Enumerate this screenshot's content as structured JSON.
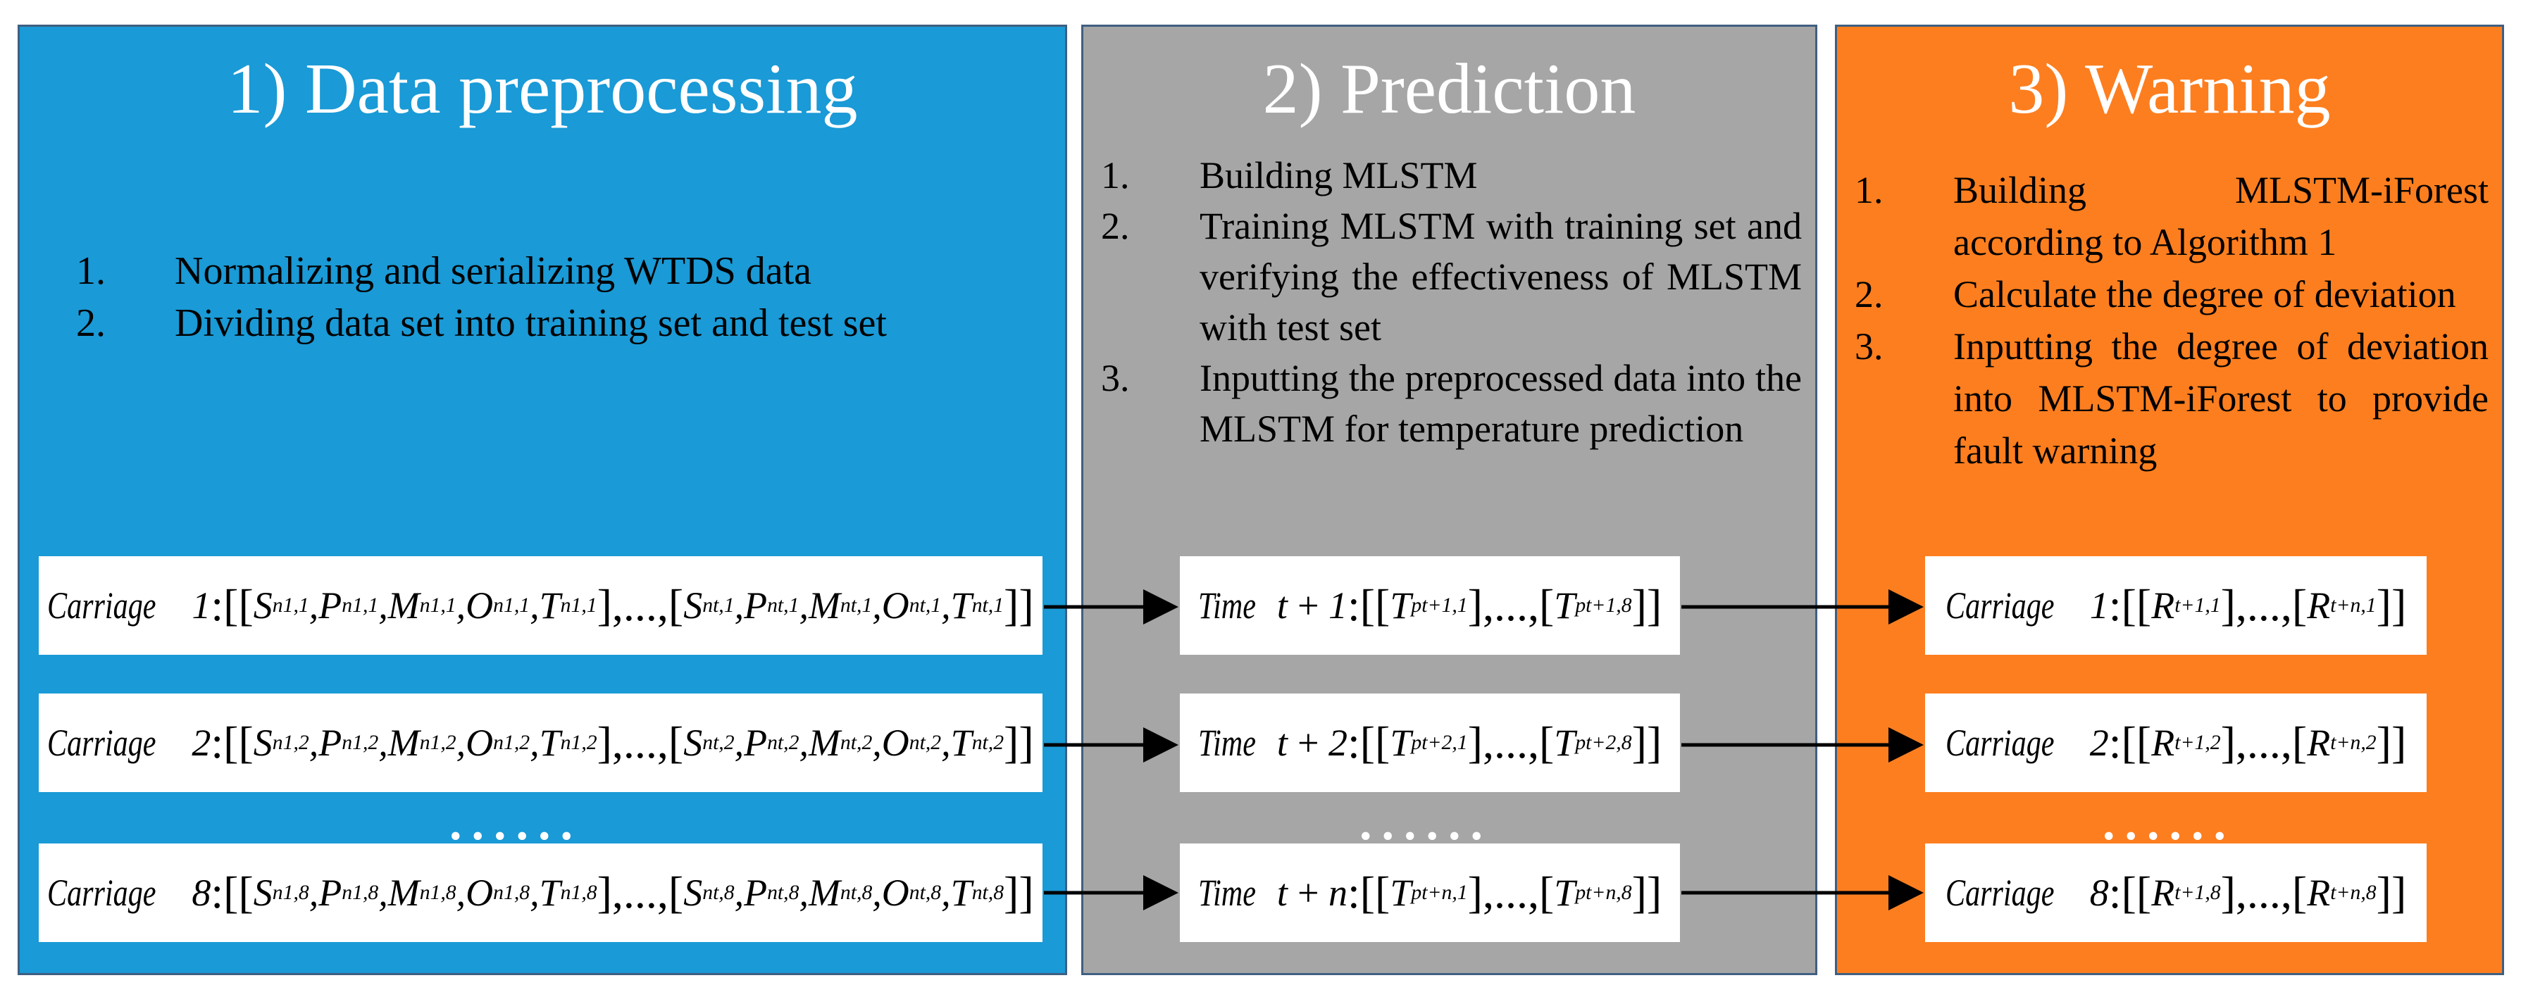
{
  "panels": [
    {
      "title": "1) Data preprocessing",
      "color": "#1a9ad6",
      "steps": [
        {
          "num": "1.",
          "text": "Normalizing and serializing WTDS data"
        },
        {
          "num": "2.",
          "text": "Dividing data set into training set and test set"
        }
      ]
    },
    {
      "title": "2) Prediction",
      "color": "#a6a6a6",
      "steps": [
        {
          "num": "1.",
          "text": "Building MLSTM"
        },
        {
          "num": "2.",
          "text": "Training MLSTM with training set and verifying the effectiveness of MLSTM with test set"
        },
        {
          "num": "3.",
          "text": "Inputting the preprocessed data into the MLSTM for temperature prediction"
        }
      ]
    },
    {
      "title": "3) Warning",
      "color": "#fd7e1f",
      "steps": [
        {
          "num": "1.",
          "text": "Building MLSTM-iForest according to Algorithm 1"
        },
        {
          "num": "2.",
          "text": "Calculate the degree of deviation"
        },
        {
          "num": "3.",
          "text": "Inputting the degree of deviation into MLSTM-iForest to provide fault warning"
        }
      ]
    }
  ],
  "carriage_word": "Carriage",
  "time_word": "Time",
  "input_rows": [
    {
      "label_num": "1",
      "idx": "1"
    },
    {
      "label_num": "2",
      "idx": "2"
    },
    {
      "label_num": "8",
      "idx": "8"
    }
  ],
  "prediction_rows": [
    {
      "step": "1",
      "last_carriage": "8"
    },
    {
      "step": "2",
      "last_carriage": "8"
    },
    {
      "step": "n",
      "last_carriage": "8"
    }
  ],
  "output_rows": [
    {
      "label_num": "1",
      "idx": "1"
    },
    {
      "label_num": "2",
      "idx": "2"
    },
    {
      "label_num": "8",
      "idx": "8"
    }
  ],
  "ellipsis": "......"
}
